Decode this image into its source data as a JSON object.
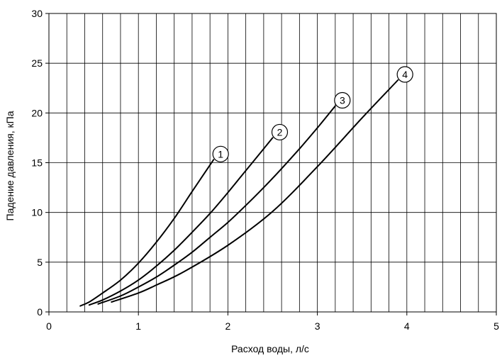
{
  "chart_data": {
    "type": "line",
    "xlabel": "Расход воды, л/с",
    "ylabel": "Падение давления, кПа",
    "xlim": [
      0,
      5
    ],
    "ylim": [
      0,
      30
    ],
    "x_ticks": [
      0,
      1,
      2,
      3,
      4,
      5
    ],
    "y_ticks": [
      0,
      5,
      10,
      15,
      20,
      25,
      30
    ],
    "x_minor_step": 0.2,
    "grid": true,
    "line_color": "#000000",
    "series": [
      {
        "name": "1",
        "x": [
          0.35,
          0.45,
          0.6,
          0.8,
          1.0,
          1.2,
          1.4,
          1.6,
          1.84
        ],
        "y": [
          0.6,
          1.0,
          1.9,
          3.2,
          4.9,
          7.0,
          9.4,
          12.1,
          15.3
        ]
      },
      {
        "name": "2",
        "x": [
          0.45,
          0.6,
          0.8,
          1.0,
          1.2,
          1.4,
          1.6,
          1.8,
          2.0,
          2.2,
          2.4,
          2.5
        ],
        "y": [
          0.7,
          1.2,
          2.1,
          3.2,
          4.6,
          6.2,
          8.0,
          9.9,
          12.0,
          14.2,
          16.4,
          17.5
        ]
      },
      {
        "name": "3",
        "x": [
          0.55,
          0.8,
          1.0,
          1.2,
          1.4,
          1.6,
          1.8,
          2.0,
          2.2,
          2.4,
          2.6,
          2.8,
          3.0,
          3.2
        ],
        "y": [
          0.8,
          1.6,
          2.5,
          3.5,
          4.7,
          6.0,
          7.5,
          9.0,
          10.7,
          12.5,
          14.4,
          16.4,
          18.5,
          20.7
        ]
      },
      {
        "name": "4",
        "x": [
          0.7,
          1.0,
          1.2,
          1.5,
          2.0,
          2.5,
          3.0,
          3.5,
          3.9
        ],
        "y": [
          1.0,
          1.9,
          2.7,
          4.0,
          6.7,
          10.1,
          14.6,
          19.5,
          23.3
        ]
      }
    ]
  }
}
